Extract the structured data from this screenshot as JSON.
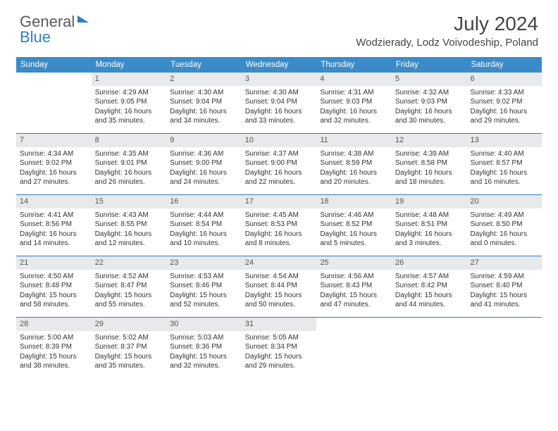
{
  "logo": {
    "part1": "General",
    "part2": "Blue"
  },
  "title": "July 2024",
  "location": "Wodzierady, Lodz Voivodeship, Poland",
  "colors": {
    "header_bg": "#3b8bc9",
    "week_border": "#2f7fc2",
    "daynum_bg": "#e8e9ea",
    "text": "#333333"
  },
  "day_headers": [
    "Sunday",
    "Monday",
    "Tuesday",
    "Wednesday",
    "Thursday",
    "Friday",
    "Saturday"
  ],
  "weeks": [
    [
      null,
      {
        "n": "1",
        "sr": "4:29 AM",
        "ss": "9:05 PM",
        "dl": "16 hours and 35 minutes."
      },
      {
        "n": "2",
        "sr": "4:30 AM",
        "ss": "9:04 PM",
        "dl": "16 hours and 34 minutes."
      },
      {
        "n": "3",
        "sr": "4:30 AM",
        "ss": "9:04 PM",
        "dl": "16 hours and 33 minutes."
      },
      {
        "n": "4",
        "sr": "4:31 AM",
        "ss": "9:03 PM",
        "dl": "16 hours and 32 minutes."
      },
      {
        "n": "5",
        "sr": "4:32 AM",
        "ss": "9:03 PM",
        "dl": "16 hours and 30 minutes."
      },
      {
        "n": "6",
        "sr": "4:33 AM",
        "ss": "9:02 PM",
        "dl": "16 hours and 29 minutes."
      }
    ],
    [
      {
        "n": "7",
        "sr": "4:34 AM",
        "ss": "9:02 PM",
        "dl": "16 hours and 27 minutes."
      },
      {
        "n": "8",
        "sr": "4:35 AM",
        "ss": "9:01 PM",
        "dl": "16 hours and 26 minutes."
      },
      {
        "n": "9",
        "sr": "4:36 AM",
        "ss": "9:00 PM",
        "dl": "16 hours and 24 minutes."
      },
      {
        "n": "10",
        "sr": "4:37 AM",
        "ss": "9:00 PM",
        "dl": "16 hours and 22 minutes."
      },
      {
        "n": "11",
        "sr": "4:38 AM",
        "ss": "8:59 PM",
        "dl": "16 hours and 20 minutes."
      },
      {
        "n": "12",
        "sr": "4:39 AM",
        "ss": "8:58 PM",
        "dl": "16 hours and 18 minutes."
      },
      {
        "n": "13",
        "sr": "4:40 AM",
        "ss": "8:57 PM",
        "dl": "16 hours and 16 minutes."
      }
    ],
    [
      {
        "n": "14",
        "sr": "4:41 AM",
        "ss": "8:56 PM",
        "dl": "16 hours and 14 minutes."
      },
      {
        "n": "15",
        "sr": "4:43 AM",
        "ss": "8:55 PM",
        "dl": "16 hours and 12 minutes."
      },
      {
        "n": "16",
        "sr": "4:44 AM",
        "ss": "8:54 PM",
        "dl": "16 hours and 10 minutes."
      },
      {
        "n": "17",
        "sr": "4:45 AM",
        "ss": "8:53 PM",
        "dl": "16 hours and 8 minutes."
      },
      {
        "n": "18",
        "sr": "4:46 AM",
        "ss": "8:52 PM",
        "dl": "16 hours and 5 minutes."
      },
      {
        "n": "19",
        "sr": "4:48 AM",
        "ss": "8:51 PM",
        "dl": "16 hours and 3 minutes."
      },
      {
        "n": "20",
        "sr": "4:49 AM",
        "ss": "8:50 PM",
        "dl": "16 hours and 0 minutes."
      }
    ],
    [
      {
        "n": "21",
        "sr": "4:50 AM",
        "ss": "8:48 PM",
        "dl": "15 hours and 58 minutes."
      },
      {
        "n": "22",
        "sr": "4:52 AM",
        "ss": "8:47 PM",
        "dl": "15 hours and 55 minutes."
      },
      {
        "n": "23",
        "sr": "4:53 AM",
        "ss": "8:46 PM",
        "dl": "15 hours and 52 minutes."
      },
      {
        "n": "24",
        "sr": "4:54 AM",
        "ss": "8:44 PM",
        "dl": "15 hours and 50 minutes."
      },
      {
        "n": "25",
        "sr": "4:56 AM",
        "ss": "8:43 PM",
        "dl": "15 hours and 47 minutes."
      },
      {
        "n": "26",
        "sr": "4:57 AM",
        "ss": "8:42 PM",
        "dl": "15 hours and 44 minutes."
      },
      {
        "n": "27",
        "sr": "4:59 AM",
        "ss": "8:40 PM",
        "dl": "15 hours and 41 minutes."
      }
    ],
    [
      {
        "n": "28",
        "sr": "5:00 AM",
        "ss": "8:39 PM",
        "dl": "15 hours and 38 minutes."
      },
      {
        "n": "29",
        "sr": "5:02 AM",
        "ss": "8:37 PM",
        "dl": "15 hours and 35 minutes."
      },
      {
        "n": "30",
        "sr": "5:03 AM",
        "ss": "8:36 PM",
        "dl": "15 hours and 32 minutes."
      },
      {
        "n": "31",
        "sr": "5:05 AM",
        "ss": "8:34 PM",
        "dl": "15 hours and 29 minutes."
      },
      null,
      null,
      null
    ]
  ],
  "labels": {
    "sunrise": "Sunrise: ",
    "sunset": "Sunset: ",
    "daylight": "Daylight: "
  }
}
